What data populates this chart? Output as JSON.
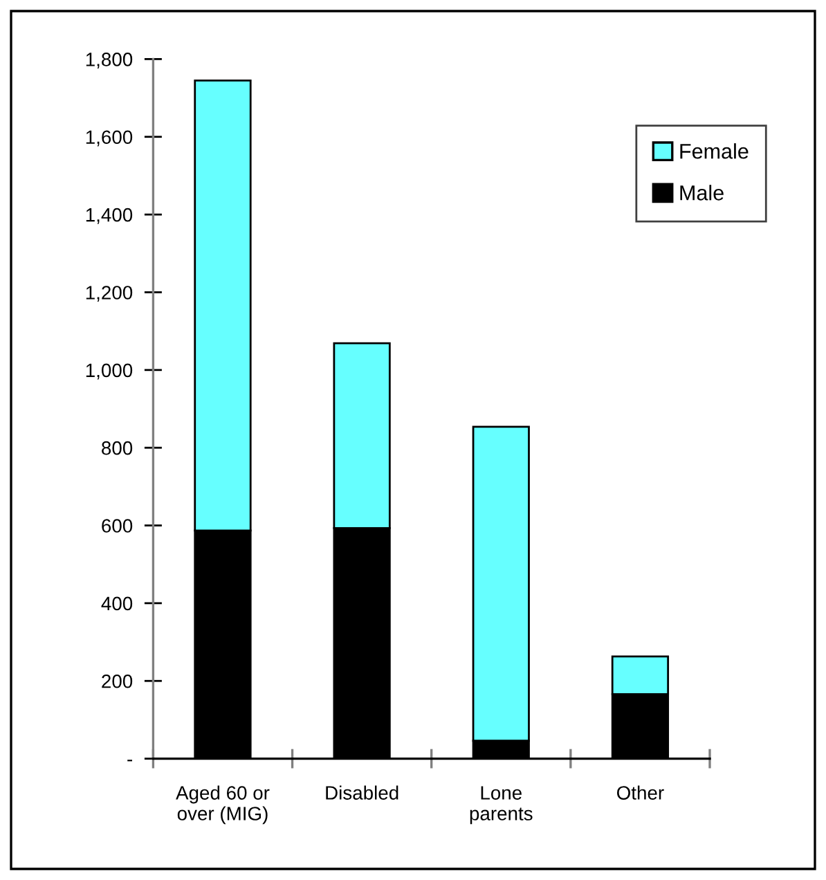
{
  "chart_data": {
    "type": "bar",
    "stacked": true,
    "categories": [
      "Aged 60 or\nover (MIG)",
      "Disabled",
      "Lone\nparents",
      "Other"
    ],
    "series": [
      {
        "name": "Male",
        "color": "#000000",
        "values": [
          587,
          593,
          46,
          166
        ]
      },
      {
        "name": "Female",
        "color": "#66ffff",
        "values": [
          1158,
          476,
          808,
          97
        ]
      }
    ],
    "ylim": [
      0,
      1800
    ],
    "yticks": [
      {
        "value": 0,
        "label": "-"
      },
      200,
      400,
      600,
      800,
      {
        "value": 1000,
        "label": "1,000"
      },
      {
        "value": 1200,
        "label": "1,200"
      },
      {
        "value": 1400,
        "label": "1,400"
      },
      {
        "value": 1600,
        "label": "1,600"
      },
      {
        "value": 1800,
        "label": "1,800"
      }
    ],
    "grid": false,
    "legend": "top right"
  }
}
